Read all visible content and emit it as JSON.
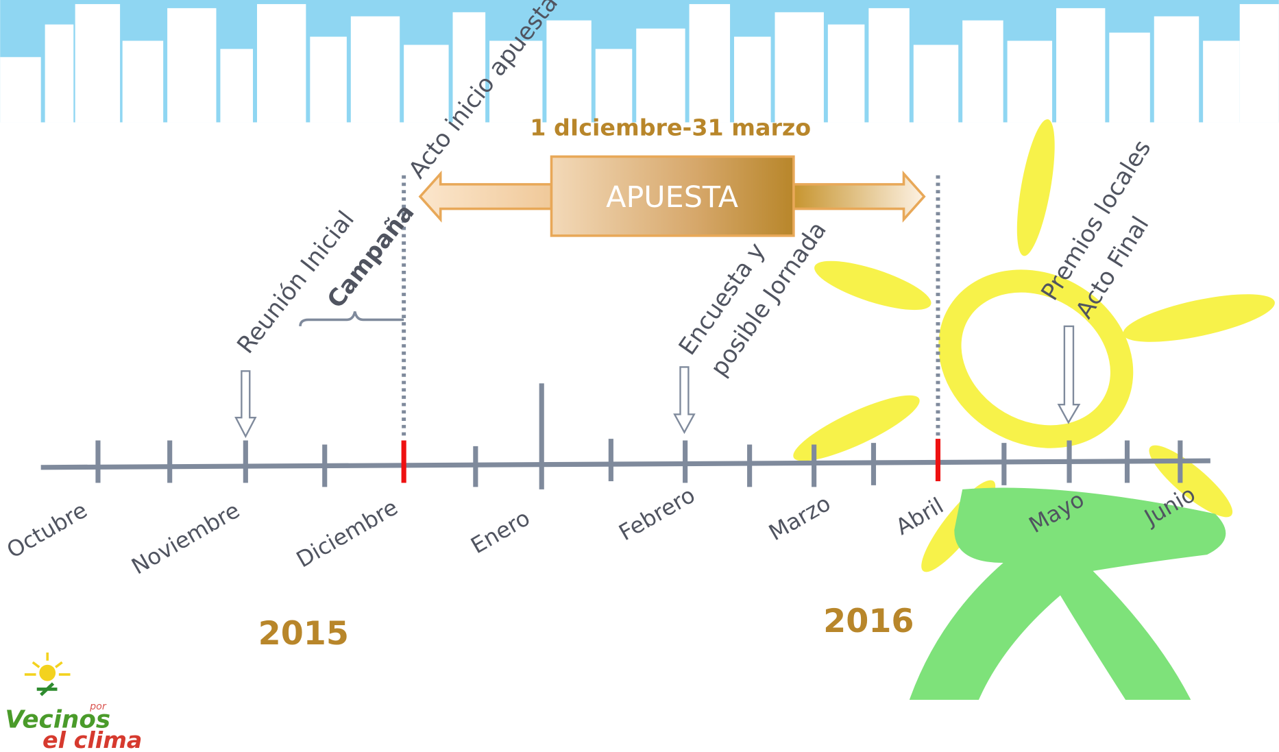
{
  "period": {
    "label": "1 dIciembre-31 marzo",
    "arrow": "APUESTA"
  },
  "months": [
    "Octubre",
    "Noviembre",
    "Diciembre",
    "Enero",
    "Febrero",
    "Marzo",
    "Abril",
    "Mayo",
    "Junio"
  ],
  "years": [
    "2015",
    "2016"
  ],
  "annotations": [
    {
      "lines": [
        "Reunión Inicial"
      ]
    },
    {
      "lines": [
        "Campaña"
      ]
    },
    {
      "lines": [
        "Acto inicio apuesta"
      ]
    },
    {
      "lines": [
        "Encuesta y",
        "posible Jornada"
      ]
    },
    {
      "lines": [
        "Premios locales",
        "Acto Final"
      ]
    }
  ],
  "logo": {
    "name": "Vecinos",
    "connector": "por",
    "tagline": "el clima"
  }
}
